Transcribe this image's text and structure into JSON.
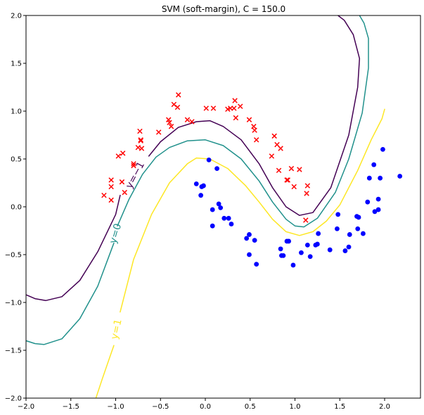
{
  "chart_data": {
    "type": "scatter",
    "title": "SVM (soft-margin), C = 150.0",
    "xlabel": "",
    "ylabel": "",
    "xlim": [
      -2.0,
      2.4
    ],
    "ylim": [
      -2.0,
      2.0
    ],
    "x_ticks": [
      -2.0,
      -1.5,
      -1.0,
      -0.5,
      0.0,
      0.5,
      1.0,
      1.5,
      2.0
    ],
    "x_tick_labels": [
      "−2.0",
      "−1.5",
      "−1.0",
      "−0.5",
      "0.0",
      "0.5",
      "1.0",
      "1.5",
      "2.0"
    ],
    "y_ticks": [
      -2.0,
      -1.5,
      -1.0,
      -0.5,
      0.0,
      0.5,
      1.0,
      1.5,
      2.0
    ],
    "y_tick_labels": [
      "−2.0",
      "−1.5",
      "−1.0",
      "−0.5",
      "0.0",
      "0.5",
      "1.0",
      "1.5",
      "2.0"
    ],
    "grid": false,
    "series": [
      {
        "marker": "x",
        "color": "#ff0000",
        "points": [
          [
            -1.13,
            0.12
          ],
          [
            -1.05,
            0.07
          ],
          [
            -1.05,
            0.21
          ],
          [
            -1.05,
            0.28
          ],
          [
            -0.97,
            0.53
          ],
          [
            -0.92,
            0.56
          ],
          [
            -0.93,
            0.26
          ],
          [
            -0.9,
            0.15
          ],
          [
            -0.8,
            0.45
          ],
          [
            -0.8,
            0.43
          ],
          [
            -0.75,
            0.62
          ],
          [
            -0.72,
            0.7
          ],
          [
            -0.71,
            0.61
          ],
          [
            -0.73,
            0.79
          ],
          [
            -0.72,
            0.69
          ],
          [
            -0.52,
            0.78
          ],
          [
            -0.41,
            0.91
          ],
          [
            -0.4,
            0.88
          ],
          [
            -0.38,
            0.84
          ],
          [
            -0.35,
            1.07
          ],
          [
            -0.31,
            1.04
          ],
          [
            -0.3,
            1.17
          ],
          [
            -0.2,
            0.91
          ],
          [
            -0.15,
            0.89
          ],
          [
            0.01,
            1.03
          ],
          [
            0.09,
            1.03
          ],
          [
            0.25,
            1.02
          ],
          [
            0.28,
            1.03
          ],
          [
            0.32,
            1.03
          ],
          [
            0.33,
            1.11
          ],
          [
            0.34,
            0.93
          ],
          [
            0.39,
            1.05
          ],
          [
            0.49,
            0.91
          ],
          [
            0.54,
            0.84
          ],
          [
            0.55,
            0.8
          ],
          [
            0.57,
            0.7
          ],
          [
            0.74,
            0.53
          ],
          [
            0.77,
            0.74
          ],
          [
            0.8,
            0.65
          ],
          [
            0.84,
            0.61
          ],
          [
            0.82,
            0.38
          ],
          [
            0.91,
            0.28
          ],
          [
            0.92,
            0.28
          ],
          [
            0.96,
            0.4
          ],
          [
            0.99,
            0.21
          ],
          [
            1.05,
            0.39
          ],
          [
            1.13,
            0.14
          ],
          [
            1.14,
            0.22
          ],
          [
            1.12,
            -0.14
          ]
        ]
      },
      {
        "marker": "o",
        "color": "#0000ff",
        "points": [
          [
            -0.1,
            0.24
          ],
          [
            -0.04,
            0.21
          ],
          [
            -0.02,
            0.22
          ],
          [
            -0.05,
            0.12
          ],
          [
            0.04,
            0.49
          ],
          [
            0.13,
            0.4
          ],
          [
            0.08,
            -0.03
          ],
          [
            0.08,
            -0.2
          ],
          [
            0.15,
            0.03
          ],
          [
            0.17,
            -0.01
          ],
          [
            0.21,
            -0.12
          ],
          [
            0.26,
            -0.12
          ],
          [
            0.29,
            -0.18
          ],
          [
            0.46,
            -0.33
          ],
          [
            0.49,
            -0.29
          ],
          [
            0.49,
            -0.5
          ],
          [
            0.55,
            -0.35
          ],
          [
            0.57,
            -0.6
          ],
          [
            0.84,
            -0.44
          ],
          [
            0.85,
            -0.51
          ],
          [
            0.87,
            -0.51
          ],
          [
            0.91,
            -0.36
          ],
          [
            0.93,
            -0.36
          ],
          [
            0.98,
            -0.61
          ],
          [
            1.07,
            -0.48
          ],
          [
            1.14,
            -0.4
          ],
          [
            1.17,
            -0.52
          ],
          [
            1.23,
            -0.4
          ],
          [
            1.26,
            -0.28
          ],
          [
            1.25,
            -0.39
          ],
          [
            1.39,
            -0.45
          ],
          [
            1.47,
            -0.23
          ],
          [
            1.48,
            -0.08
          ],
          [
            1.56,
            -0.46
          ],
          [
            1.6,
            -0.42
          ],
          [
            1.61,
            -0.29
          ],
          [
            1.69,
            -0.1
          ],
          [
            1.7,
            -0.23
          ],
          [
            1.71,
            -0.11
          ],
          [
            1.76,
            -0.28
          ],
          [
            1.81,
            0.05
          ],
          [
            1.83,
            0.3
          ],
          [
            1.88,
            0.44
          ],
          [
            1.89,
            -0.05
          ],
          [
            1.93,
            -0.03
          ],
          [
            1.93,
            0.08
          ],
          [
            1.95,
            0.3
          ],
          [
            1.98,
            0.6
          ],
          [
            2.17,
            0.32
          ]
        ]
      }
    ],
    "contours": [
      {
        "level": -1,
        "label": "y=−1",
        "color": "#440154",
        "segments": [
          [
            [
              -2.0,
              -0.92
            ],
            [
              -1.9,
              -0.96
            ],
            [
              -1.78,
              -0.98
            ],
            [
              -1.6,
              -0.94
            ],
            [
              -1.4,
              -0.77
            ],
            [
              -1.2,
              -0.47
            ],
            [
              -1.0,
              -0.08
            ],
            [
              -0.95,
              0.12
            ]
          ],
          [
            [
              -0.63,
              0.53
            ],
            [
              -0.5,
              0.68
            ],
            [
              -0.3,
              0.83
            ],
            [
              -0.1,
              0.89
            ],
            [
              0.05,
              0.9
            ],
            [
              0.2,
              0.84
            ],
            [
              0.4,
              0.7
            ],
            [
              0.6,
              0.45
            ],
            [
              0.75,
              0.2
            ],
            [
              0.9,
              0.0
            ],
            [
              1.05,
              -0.09
            ],
            [
              1.2,
              -0.06
            ],
            [
              1.4,
              0.2
            ],
            [
              1.6,
              0.75
            ],
            [
              1.7,
              1.25
            ],
            [
              1.72,
              1.55
            ],
            [
              1.65,
              1.8
            ],
            [
              1.55,
              1.95
            ],
            [
              1.48,
              2.0
            ]
          ]
        ]
      },
      {
        "level": 0,
        "label": "y=0",
        "color": "#21918c",
        "segments": [
          [
            [
              -2.0,
              -1.4
            ],
            [
              -1.9,
              -1.43
            ],
            [
              -1.8,
              -1.44
            ],
            [
              -1.6,
              -1.38
            ],
            [
              -1.4,
              -1.17
            ],
            [
              -1.2,
              -0.83
            ],
            [
              -1.06,
              -0.48
            ],
            [
              -1.02,
              -0.38
            ]
          ],
          [
            [
              -0.98,
              -0.2
            ],
            [
              -0.85,
              0.08
            ],
            [
              -0.7,
              0.34
            ],
            [
              -0.55,
              0.52
            ],
            [
              -0.4,
              0.62
            ],
            [
              -0.2,
              0.69
            ],
            [
              0.0,
              0.7
            ],
            [
              0.2,
              0.64
            ],
            [
              0.4,
              0.5
            ],
            [
              0.6,
              0.27
            ],
            [
              0.75,
              0.05
            ],
            [
              0.9,
              -0.13
            ],
            [
              1.0,
              -0.2
            ],
            [
              1.1,
              -0.21
            ],
            [
              1.25,
              -0.12
            ],
            [
              1.45,
              0.15
            ],
            [
              1.6,
              0.5
            ],
            [
              1.75,
              0.98
            ],
            [
              1.82,
              1.45
            ],
            [
              1.82,
              1.76
            ],
            [
              1.77,
              1.92
            ],
            [
              1.72,
              2.0
            ]
          ]
        ]
      },
      {
        "level": 1,
        "label": "y=1",
        "color": "#fde725",
        "segments": [
          [
            [
              -1.22,
              -2.0
            ],
            [
              -1.15,
              -1.8
            ],
            [
              -1.05,
              -1.53
            ],
            [
              -1.02,
              -1.45
            ]
          ],
          [
            [
              -0.95,
              -1.1
            ],
            [
              -0.8,
              -0.55
            ],
            [
              -0.6,
              -0.08
            ],
            [
              -0.4,
              0.25
            ],
            [
              -0.2,
              0.45
            ],
            [
              -0.1,
              0.51
            ],
            [
              0.05,
              0.5
            ],
            [
              0.25,
              0.4
            ],
            [
              0.45,
              0.22
            ],
            [
              0.6,
              0.05
            ],
            [
              0.75,
              -0.13
            ],
            [
              0.9,
              -0.26
            ],
            [
              1.05,
              -0.3
            ],
            [
              1.2,
              -0.26
            ],
            [
              1.35,
              -0.15
            ],
            [
              1.5,
              0.02
            ],
            [
              1.7,
              0.38
            ],
            [
              1.85,
              0.7
            ],
            [
              1.97,
              0.92
            ],
            [
              2.0,
              1.02
            ]
          ]
        ]
      }
    ]
  }
}
